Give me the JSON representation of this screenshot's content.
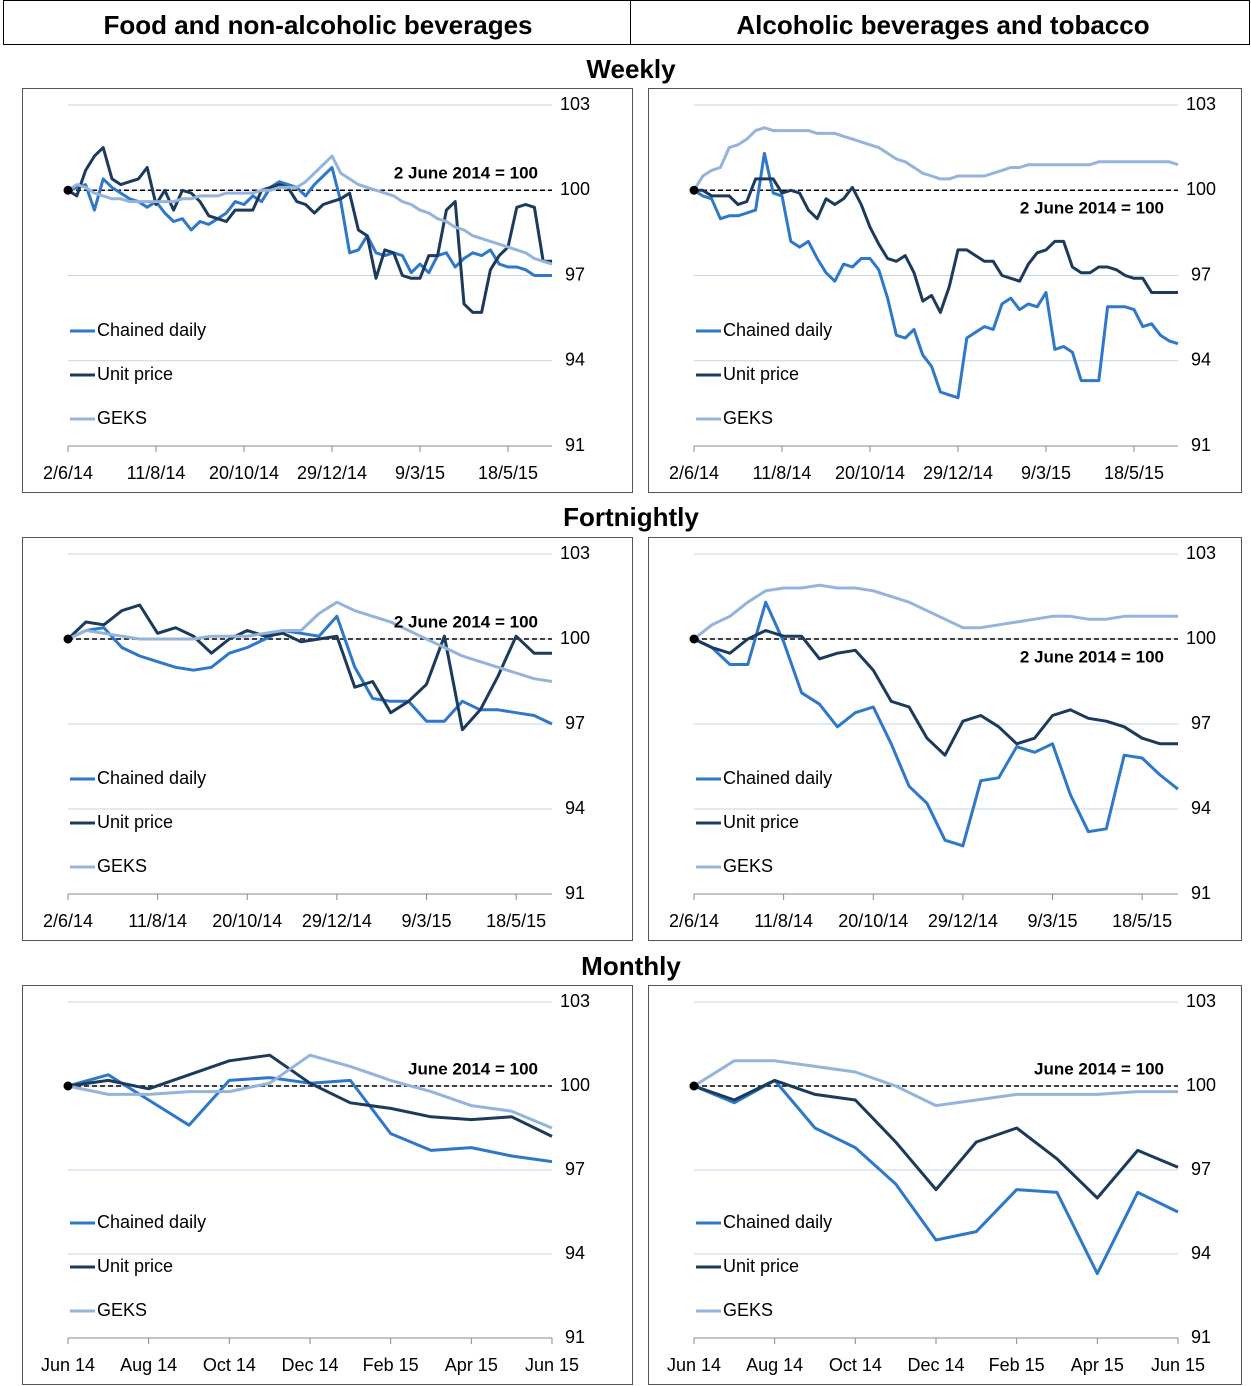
{
  "columns": [
    "Food and non-alcoholic beverages",
    "Alcoholic beverages and tobacco"
  ],
  "rows": [
    "Weekly",
    "Fortnightly",
    "Monthly"
  ],
  "chart_data": [
    {
      "type": "line",
      "annotation": "2 June 2014 = 100",
      "annotation_side": "above",
      "reference_line": 100,
      "ylim": [
        91,
        103
      ],
      "yticks": [
        91,
        94,
        97,
        100,
        103
      ],
      "grid": true,
      "legend": "lower-left",
      "categories": [
        "2/6/14",
        null,
        null,
        null,
        null,
        null,
        null,
        null,
        null,
        null,
        "11/8/14",
        null,
        null,
        null,
        null,
        null,
        null,
        null,
        null,
        null,
        "20/10/14",
        null,
        null,
        null,
        null,
        null,
        null,
        null,
        null,
        null,
        "29/12/14",
        null,
        null,
        null,
        null,
        null,
        null,
        null,
        null,
        null,
        "9/3/15",
        null,
        null,
        null,
        null,
        null,
        null,
        null,
        null,
        null,
        "18/5/15",
        null,
        null,
        null,
        null,
        null
      ],
      "series": [
        {
          "name": "Chained daily",
          "color": "#2e78c9",
          "values": [
            100.0,
            100.1,
            100.2,
            99.3,
            100.4,
            100.1,
            99.9,
            99.7,
            99.6,
            99.4,
            99.6,
            99.2,
            98.9,
            99.0,
            98.6,
            98.9,
            98.8,
            99.0,
            99.2,
            99.6,
            99.5,
            99.8,
            99.6,
            100.1,
            100.3,
            100.2,
            100.1,
            99.8,
            100.2,
            100.5,
            100.8,
            99.6,
            97.8,
            97.9,
            98.4,
            97.8,
            97.7,
            97.8,
            97.7,
            97.1,
            97.4,
            97.1,
            97.7,
            97.8,
            97.3,
            97.6,
            97.8,
            97.7,
            97.9,
            97.4,
            97.3,
            97.3,
            97.2,
            97.0,
            97.0,
            97.0
          ]
        },
        {
          "name": "Unit price",
          "color": "#1c3a5c",
          "values": [
            100.0,
            99.8,
            100.7,
            101.2,
            101.5,
            100.4,
            100.2,
            100.3,
            100.4,
            100.8,
            99.5,
            100.0,
            99.3,
            100.0,
            99.9,
            99.6,
            99.1,
            99.0,
            98.9,
            99.3,
            99.3,
            99.3,
            100.0,
            100.1,
            100.2,
            100.1,
            99.6,
            99.5,
            99.2,
            99.5,
            99.6,
            99.7,
            99.9,
            98.6,
            98.4,
            96.9,
            97.9,
            97.8,
            97.0,
            96.9,
            96.9,
            97.7,
            97.7,
            99.3,
            99.6,
            96.0,
            95.7,
            95.7,
            97.2,
            97.7,
            98.0,
            99.4,
            99.5,
            99.4,
            97.5,
            97.5
          ]
        },
        {
          "name": "GEKS",
          "color": "#94b4dc",
          "values": [
            100.0,
            100.2,
            100.1,
            99.9,
            99.8,
            99.7,
            99.7,
            99.6,
            99.6,
            99.6,
            99.6,
            99.6,
            99.6,
            99.7,
            99.7,
            99.8,
            99.8,
            99.8,
            99.9,
            99.9,
            99.9,
            99.9,
            100.0,
            100.0,
            100.1,
            100.1,
            100.1,
            100.3,
            100.6,
            100.9,
            101.2,
            100.6,
            100.4,
            100.2,
            100.1,
            100.0,
            99.9,
            99.8,
            99.6,
            99.5,
            99.3,
            99.2,
            99.0,
            98.9,
            98.7,
            98.6,
            98.4,
            98.3,
            98.2,
            98.1,
            98.0,
            97.9,
            97.8,
            97.6,
            97.5,
            97.4
          ]
        }
      ]
    },
    {
      "type": "line",
      "annotation": "2 June 2014 = 100",
      "annotation_side": "below",
      "reference_line": 100,
      "ylim": [
        91,
        103
      ],
      "yticks": [
        91,
        94,
        97,
        100,
        103
      ],
      "grid": true,
      "legend": "lower-left",
      "categories": [
        "2/6/14",
        null,
        null,
        null,
        null,
        null,
        null,
        null,
        null,
        null,
        "11/8/14",
        null,
        null,
        null,
        null,
        null,
        null,
        null,
        null,
        null,
        "20/10/14",
        null,
        null,
        null,
        null,
        null,
        null,
        null,
        null,
        null,
        "29/12/14",
        null,
        null,
        null,
        null,
        null,
        null,
        null,
        null,
        null,
        "9/3/15",
        null,
        null,
        null,
        null,
        null,
        null,
        null,
        null,
        null,
        "18/5/15",
        null,
        null,
        null,
        null,
        null
      ],
      "series": [
        {
          "name": "Chained daily",
          "color": "#2e78c9",
          "values": [
            100.0,
            99.8,
            99.7,
            99.0,
            99.1,
            99.1,
            99.2,
            99.3,
            101.3,
            99.9,
            99.8,
            98.2,
            98.0,
            98.2,
            97.6,
            97.1,
            96.8,
            97.4,
            97.3,
            97.6,
            97.6,
            97.2,
            96.2,
            94.9,
            94.8,
            95.1,
            94.2,
            93.8,
            92.9,
            92.8,
            92.7,
            94.8,
            95.0,
            95.2,
            95.1,
            96.0,
            96.2,
            95.8,
            96.0,
            95.9,
            96.4,
            94.4,
            94.5,
            94.3,
            93.3,
            93.3,
            93.3,
            95.9,
            95.9,
            95.9,
            95.8,
            95.2,
            95.3,
            94.9,
            94.7,
            94.6
          ]
        },
        {
          "name": "Unit price",
          "color": "#1c3a5c",
          "values": [
            100.0,
            100.0,
            99.8,
            99.8,
            99.8,
            99.5,
            99.6,
            100.4,
            100.4,
            100.4,
            99.9,
            100.0,
            99.9,
            99.3,
            99.0,
            99.7,
            99.5,
            99.7,
            100.1,
            99.5,
            98.7,
            98.1,
            97.6,
            97.5,
            97.7,
            97.1,
            96.1,
            96.3,
            95.7,
            96.6,
            97.9,
            97.9,
            97.7,
            97.5,
            97.5,
            97.0,
            96.9,
            96.8,
            97.4,
            97.8,
            97.9,
            98.2,
            98.2,
            97.3,
            97.1,
            97.1,
            97.3,
            97.3,
            97.2,
            97.0,
            96.9,
            96.9,
            96.4,
            96.4,
            96.4,
            96.4
          ]
        },
        {
          "name": "GEKS",
          "color": "#94b4dc",
          "values": [
            100.0,
            100.5,
            100.7,
            100.8,
            101.5,
            101.6,
            101.8,
            102.1,
            102.2,
            102.1,
            102.1,
            102.1,
            102.1,
            102.1,
            102.0,
            102.0,
            102.0,
            101.9,
            101.8,
            101.7,
            101.6,
            101.5,
            101.3,
            101.1,
            101.0,
            100.8,
            100.6,
            100.5,
            100.4,
            100.4,
            100.5,
            100.5,
            100.5,
            100.5,
            100.6,
            100.7,
            100.8,
            100.8,
            100.9,
            100.9,
            100.9,
            100.9,
            100.9,
            100.9,
            100.9,
            100.9,
            101.0,
            101.0,
            101.0,
            101.0,
            101.0,
            101.0,
            101.0,
            101.0,
            101.0,
            100.9
          ]
        }
      ]
    },
    {
      "type": "line",
      "annotation": "2 June 2014 = 100",
      "annotation_side": "above",
      "reference_line": 100,
      "ylim": [
        91,
        103
      ],
      "yticks": [
        91,
        94,
        97,
        100,
        103
      ],
      "grid": true,
      "legend": "lower-left",
      "categories": [
        "2/6/14",
        null,
        null,
        null,
        null,
        "11/8/14",
        null,
        null,
        null,
        null,
        "20/10/14",
        null,
        null,
        null,
        null,
        "29/12/14",
        null,
        null,
        null,
        null,
        "9/3/15",
        null,
        null,
        null,
        null,
        "18/5/15",
        null,
        null
      ],
      "series": [
        {
          "name": "Chained daily",
          "color": "#2e78c9",
          "values": [
            100.0,
            100.3,
            100.4,
            99.7,
            99.4,
            99.2,
            99.0,
            98.9,
            99.0,
            99.5,
            99.7,
            100.0,
            100.3,
            100.2,
            100.1,
            100.8,
            99.0,
            97.9,
            97.8,
            97.8,
            97.1,
            97.1,
            97.8,
            97.5,
            97.5,
            97.4,
            97.3,
            97.0
          ]
        },
        {
          "name": "Unit price",
          "color": "#1c3a5c",
          "values": [
            100.0,
            100.6,
            100.5,
            101.0,
            101.2,
            100.2,
            100.4,
            100.1,
            99.5,
            100.0,
            100.3,
            100.1,
            100.2,
            99.9,
            100.0,
            100.1,
            98.3,
            98.5,
            97.4,
            97.8,
            98.4,
            100.1,
            96.8,
            97.5,
            98.7,
            100.1,
            99.5,
            99.5
          ]
        },
        {
          "name": "GEKS",
          "color": "#94b4dc",
          "values": [
            100.0,
            100.3,
            100.2,
            100.1,
            100.0,
            100.0,
            100.0,
            100.0,
            100.1,
            100.1,
            100.1,
            100.2,
            100.3,
            100.3,
            100.9,
            101.3,
            101.0,
            100.8,
            100.6,
            100.3,
            100.0,
            99.7,
            99.4,
            99.2,
            99.0,
            98.8,
            98.6,
            98.5
          ]
        }
      ]
    },
    {
      "type": "line",
      "annotation": "2 June 2014 = 100",
      "annotation_side": "below",
      "reference_line": 100,
      "ylim": [
        91,
        103
      ],
      "yticks": [
        91,
        94,
        97,
        100,
        103
      ],
      "grid": true,
      "legend": "lower-left",
      "categories": [
        "2/6/14",
        null,
        null,
        null,
        null,
        "11/8/14",
        null,
        null,
        null,
        null,
        "20/10/14",
        null,
        null,
        null,
        null,
        "29/12/14",
        null,
        null,
        null,
        null,
        "9/3/15",
        null,
        null,
        null,
        null,
        "18/5/15",
        null,
        null
      ],
      "series": [
        {
          "name": "Chained daily",
          "color": "#2e78c9",
          "values": [
            100.0,
            99.7,
            99.1,
            99.1,
            101.3,
            99.9,
            98.1,
            97.7,
            96.9,
            97.4,
            97.6,
            96.3,
            94.8,
            94.2,
            92.9,
            92.7,
            95.0,
            95.1,
            96.2,
            96.0,
            96.3,
            94.5,
            93.2,
            93.3,
            95.9,
            95.8,
            95.2,
            94.7
          ]
        },
        {
          "name": "Unit price",
          "color": "#1c3a5c",
          "values": [
            100.0,
            99.7,
            99.5,
            100.0,
            100.3,
            100.1,
            100.1,
            99.3,
            99.5,
            99.6,
            98.9,
            97.8,
            97.6,
            96.5,
            95.9,
            97.1,
            97.3,
            96.9,
            96.3,
            96.5,
            97.3,
            97.5,
            97.2,
            97.1,
            96.9,
            96.5,
            96.3,
            96.3
          ]
        },
        {
          "name": "GEKS",
          "color": "#94b4dc",
          "values": [
            100.0,
            100.5,
            100.8,
            101.3,
            101.7,
            101.8,
            101.8,
            101.9,
            101.8,
            101.8,
            101.7,
            101.5,
            101.3,
            101.0,
            100.7,
            100.4,
            100.4,
            100.5,
            100.6,
            100.7,
            100.8,
            100.8,
            100.7,
            100.7,
            100.8,
            100.8,
            100.8,
            100.8
          ]
        }
      ]
    },
    {
      "type": "line",
      "annotation": "June 2014 = 100",
      "annotation_side": "above",
      "reference_line": 100,
      "ylim": [
        91,
        103
      ],
      "yticks": [
        91,
        94,
        97,
        100,
        103
      ],
      "grid": true,
      "legend": "lower-left",
      "categories": [
        "Jun 14",
        null,
        "Aug 14",
        null,
        "Oct 14",
        null,
        "Dec 14",
        null,
        "Feb 15",
        null,
        "Apr 15",
        null,
        "Jun 15"
      ],
      "series": [
        {
          "name": "Chained daily",
          "color": "#2e78c9",
          "values": [
            100.0,
            100.4,
            99.5,
            98.6,
            100.2,
            100.3,
            100.1,
            100.2,
            98.3,
            97.7,
            97.8,
            97.5,
            97.3
          ]
        },
        {
          "name": "Unit price",
          "color": "#1c3a5c",
          "values": [
            100.0,
            100.2,
            99.9,
            100.4,
            100.9,
            101.1,
            100.1,
            99.4,
            99.2,
            98.9,
            98.8,
            98.9,
            98.2
          ]
        },
        {
          "name": "GEKS",
          "color": "#94b4dc",
          "values": [
            100.0,
            99.7,
            99.7,
            99.8,
            99.8,
            100.1,
            101.1,
            100.7,
            100.2,
            99.8,
            99.3,
            99.1,
            98.5
          ]
        }
      ]
    },
    {
      "type": "line",
      "annotation": "June 2014 = 100",
      "annotation_side": "above",
      "reference_line": 100,
      "ylim": [
        91,
        103
      ],
      "yticks": [
        91,
        94,
        97,
        100,
        103
      ],
      "grid": true,
      "legend": "lower-left",
      "categories": [
        "Jun 14",
        null,
        "Aug 14",
        null,
        "Oct 14",
        null,
        "Dec 14",
        null,
        "Feb 15",
        null,
        "Apr 15",
        null,
        "Jun 15"
      ],
      "series": [
        {
          "name": "Chained daily",
          "color": "#2e78c9",
          "values": [
            100.0,
            99.4,
            100.2,
            98.5,
            97.8,
            96.5,
            94.5,
            94.8,
            96.3,
            96.2,
            93.3,
            96.2,
            95.5
          ]
        },
        {
          "name": "Unit price",
          "color": "#1c3a5c",
          "values": [
            100.0,
            99.5,
            100.2,
            99.7,
            99.5,
            98.0,
            96.3,
            98.0,
            98.5,
            97.4,
            96.0,
            97.7,
            97.1
          ]
        },
        {
          "name": "GEKS",
          "color": "#94b4dc",
          "values": [
            100.0,
            100.9,
            100.9,
            100.7,
            100.5,
            100.0,
            99.3,
            99.5,
            99.7,
            99.7,
            99.7,
            99.8,
            99.8
          ]
        }
      ]
    }
  ]
}
